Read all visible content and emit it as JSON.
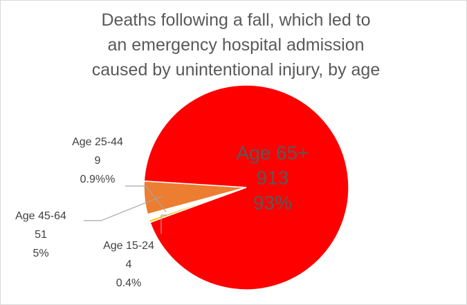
{
  "chart_data": {
    "type": "pie",
    "title": "Deaths following a fall, which led to an emergency hospital admission caused by unintentional injury, by age",
    "categories": [
      "Age 15-24",
      "Age 25-44",
      "Age 45-64",
      "Age 65+"
    ],
    "values": [
      4,
      9,
      51,
      913
    ],
    "percent_labels": [
      "0.4%",
      "0.9%%",
      "5%",
      "93%"
    ],
    "colors": [
      "#ffc000",
      "#ffffff",
      "#ed7d31",
      "#ff0000"
    ]
  }
}
